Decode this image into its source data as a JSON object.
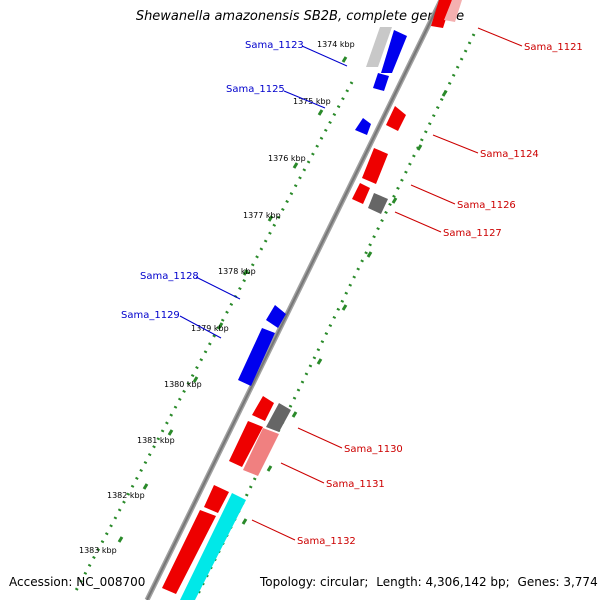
{
  "title": "Shewanella amazonensis SB2B, complete genome",
  "footer": {
    "accession_label": "Accession:",
    "accession": "NC_008700",
    "topology_label": "Topology:",
    "topology": "circular;",
    "length_label": "Length:",
    "length": "4,306,142 bp;",
    "genes_label": "Genes:",
    "genes": "3,774"
  },
  "colors": {
    "reverse_label": "#0000cc",
    "forward_label": "#cc0000",
    "backbone": "#808080",
    "tick_dots": "#2a8a2a",
    "cds_reverse": "#0000ee",
    "cds_forward": "#ee0000",
    "gene_grey": "#666666",
    "rna": "#00eeee"
  },
  "ticks": [
    "1374 kbp",
    "1375 kbp",
    "1376 kbp",
    "1377 kbp",
    "1378 kbp",
    "1379 kbp",
    "1380 kbp",
    "1381 kbp",
    "1382 kbp",
    "1383 kbp"
  ],
  "genes_reverse": [
    "Sama_1123",
    "Sama_1125",
    "Sama_1128",
    "Sama_1129"
  ],
  "genes_forward": [
    "Sama_1121",
    "Sama_1124",
    "Sama_1126",
    "Sama_1127",
    "Sama_1130",
    "Sama_1131",
    "Sama_1132"
  ]
}
